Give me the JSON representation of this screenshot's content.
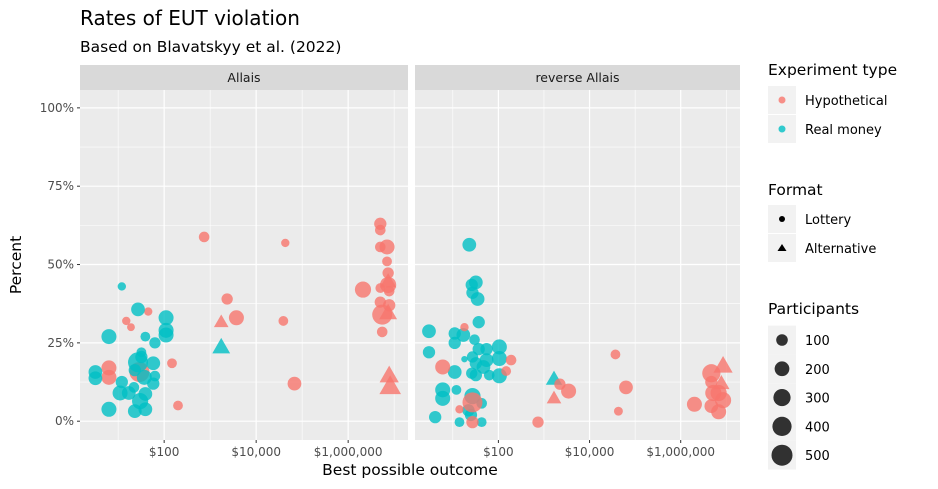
{
  "chart_data": {
    "type": "scatter",
    "title": "Rates of EUT violation",
    "subtitle": "Based on Blavatskyy et al. (2022)",
    "xlabel": "Best possible outcome",
    "ylabel": "Percent",
    "x_scale": "log10",
    "xlim": [
      1.48,
      20000000
    ],
    "ylim": [
      -0.06,
      1.057
    ],
    "x_ticks": [
      {
        "value": 100,
        "label": "$100"
      },
      {
        "value": 10000,
        "label": "$10,000"
      },
      {
        "value": 1000000,
        "label": "$1,000,000"
      }
    ],
    "y_ticks": [
      {
        "value": 0,
        "label": "0%"
      },
      {
        "value": 0.25,
        "label": "25%"
      },
      {
        "value": 0.5,
        "label": "50%"
      },
      {
        "value": 0.75,
        "label": "75%"
      },
      {
        "value": 1,
        "label": "100%"
      }
    ],
    "grid": true,
    "facets": [
      "Allais",
      "reverse Allais"
    ],
    "colors": {
      "Hypothetical": "#F8766D",
      "Real money": "#00BFC4"
    },
    "legend": {
      "placement": "right",
      "color_title": "Experiment type",
      "color_entries": [
        "Hypothetical",
        "Real money"
      ],
      "shape_title": "Format",
      "shape_entries": [
        "Lottery",
        "Alternative"
      ],
      "size_title": "Participants",
      "size_entries": [
        "100",
        "200",
        "300",
        "400",
        "500"
      ]
    },
    "point_fields": [
      "x",
      "y",
      "participants",
      "experiment_type",
      "format"
    ],
    "panels": [
      {
        "facet": "Allais",
        "points": [
          [
            740,
            0.588,
            100,
            "H",
            "L"
          ],
          [
            43000,
            0.569,
            50,
            "H",
            "L"
          ],
          [
            5000000,
            0.63,
            150,
            "H",
            "L"
          ],
          [
            5000000,
            0.61,
            100,
            "H",
            "L"
          ],
          [
            5000000,
            0.556,
            100,
            "H",
            "L"
          ],
          [
            7000000,
            0.556,
            250,
            "H",
            "L"
          ],
          [
            7000000,
            0.51,
            80,
            "H",
            "L"
          ],
          [
            7400000,
            0.473,
            120,
            "H",
            "L"
          ],
          [
            7400000,
            0.435,
            300,
            "H",
            "L"
          ],
          [
            5000000,
            0.425,
            80,
            "H",
            "L"
          ],
          [
            7800000,
            0.415,
            100,
            "H",
            "L"
          ],
          [
            2100000,
            0.42,
            300,
            "H",
            "L"
          ],
          [
            7400000,
            0.445,
            200,
            "H",
            "A"
          ],
          [
            5000000,
            0.38,
            120,
            "H",
            "L"
          ],
          [
            7800000,
            0.37,
            150,
            "H",
            "L"
          ],
          [
            5500000,
            0.34,
            500,
            "H",
            "L"
          ],
          [
            7400000,
            0.345,
            250,
            "H",
            "A"
          ],
          [
            5500000,
            0.285,
            100,
            "H",
            "L"
          ],
          [
            7800000,
            0.145,
            300,
            "H",
            "A"
          ],
          [
            8200000,
            0.11,
            400,
            "H",
            "A"
          ],
          [
            2340,
            0.39,
            120,
            "H",
            "L"
          ],
          [
            3720,
            0.33,
            250,
            "H",
            "L"
          ],
          [
            1740,
            0.316,
            150,
            "H",
            "A"
          ],
          [
            39000,
            0.32,
            80,
            "H",
            "L"
          ],
          [
            68000,
            0.12,
            200,
            "H",
            "L"
          ],
          [
            148,
            0.185,
            80,
            "H",
            "L"
          ],
          [
            200,
            0.05,
            80,
            "H",
            "L"
          ],
          [
            45,
            0.35,
            50,
            "H",
            "L"
          ],
          [
            15,
            0.32,
            50,
            "H",
            "L"
          ],
          [
            19,
            0.3,
            40,
            "H",
            "L"
          ],
          [
            6.3,
            0.17,
            250,
            "H",
            "L"
          ],
          [
            6.3,
            0.14,
            250,
            "H",
            "L"
          ],
          [
            29,
            0.157,
            500,
            "H",
            "L"
          ],
          [
            12,
            0.43,
            50,
            "R",
            "L"
          ],
          [
            27,
            0.357,
            200,
            "R",
            "L"
          ],
          [
            6.3,
            0.27,
            250,
            "R",
            "L"
          ],
          [
            110,
            0.33,
            250,
            "R",
            "L"
          ],
          [
            110,
            0.29,
            250,
            "R",
            "L"
          ],
          [
            110,
            0.275,
            250,
            "R",
            "L"
          ],
          [
            39,
            0.27,
            80,
            "R",
            "L"
          ],
          [
            63,
            0.25,
            120,
            "R",
            "L"
          ],
          [
            1740,
            0.236,
            250,
            "R",
            "A"
          ],
          [
            32,
            0.22,
            80,
            "R",
            "L"
          ],
          [
            32,
            0.205,
            150,
            "R",
            "L"
          ],
          [
            27,
            0.188,
            500,
            "R",
            "L"
          ],
          [
            58,
            0.185,
            200,
            "R",
            "L"
          ],
          [
            3.2,
            0.157,
            200,
            "R",
            "L"
          ],
          [
            3.2,
            0.137,
            200,
            "R",
            "L"
          ],
          [
            23,
            0.163,
            150,
            "R",
            "L"
          ],
          [
            37,
            0.14,
            250,
            "R",
            "L"
          ],
          [
            63,
            0.144,
            100,
            "R",
            "L"
          ],
          [
            58,
            0.12,
            150,
            "R",
            "L"
          ],
          [
            12,
            0.125,
            150,
            "R",
            "L"
          ],
          [
            11,
            0.09,
            250,
            "R",
            "L"
          ],
          [
            17,
            0.09,
            200,
            "R",
            "L"
          ],
          [
            39,
            0.087,
            200,
            "R",
            "L"
          ],
          [
            30,
            0.064,
            300,
            "R",
            "L"
          ],
          [
            6.3,
            0.038,
            250,
            "R",
            "L"
          ],
          [
            23,
            0.032,
            200,
            "R",
            "L"
          ],
          [
            39,
            0.038,
            200,
            "R",
            "L"
          ],
          [
            22,
            0.108,
            100,
            "R",
            "L"
          ]
        ]
      },
      {
        "facet": "reverse Allais",
        "points": [
          [
            23,
            0.563,
            200,
            "R",
            "L"
          ],
          [
            32,
            0.443,
            200,
            "R",
            "L"
          ],
          [
            26,
            0.435,
            150,
            "R",
            "L"
          ],
          [
            27,
            0.41,
            150,
            "R",
            "L"
          ],
          [
            35,
            0.39,
            200,
            "R",
            "L"
          ],
          [
            37,
            0.316,
            150,
            "R",
            "L"
          ],
          [
            3,
            0.287,
            200,
            "R",
            "L"
          ],
          [
            11,
            0.28,
            150,
            "R",
            "L"
          ],
          [
            17,
            0.275,
            200,
            "R",
            "L"
          ],
          [
            11,
            0.25,
            150,
            "R",
            "L"
          ],
          [
            3,
            0.22,
            150,
            "R",
            "L"
          ],
          [
            105,
            0.237,
            250,
            "R",
            "L"
          ],
          [
            105,
            0.2,
            250,
            "R",
            "L"
          ],
          [
            105,
            0.145,
            250,
            "R",
            "L"
          ],
          [
            30,
            0.26,
            100,
            "R",
            "L"
          ],
          [
            37,
            0.23,
            150,
            "R",
            "L"
          ],
          [
            55,
            0.23,
            150,
            "R",
            "L"
          ],
          [
            27,
            0.205,
            120,
            "R",
            "L"
          ],
          [
            55,
            0.195,
            200,
            "R",
            "L"
          ],
          [
            32,
            0.185,
            150,
            "R",
            "L"
          ],
          [
            47,
            0.173,
            200,
            "R",
            "L"
          ],
          [
            26,
            0.153,
            120,
            "R",
            "L"
          ],
          [
            32,
            0.147,
            150,
            "R",
            "L"
          ],
          [
            63,
            0.147,
            100,
            "R",
            "L"
          ],
          [
            11,
            0.157,
            200,
            "R",
            "L"
          ],
          [
            18,
            0.198,
            20,
            "R",
            "L"
          ],
          [
            6,
            0.1,
            250,
            "R",
            "L"
          ],
          [
            6,
            0.073,
            250,
            "R",
            "L"
          ],
          [
            12,
            0.1,
            80,
            "R",
            "L"
          ],
          [
            27,
            0.08,
            300,
            "R",
            "L"
          ],
          [
            43,
            0.057,
            100,
            "R",
            "L"
          ],
          [
            22,
            0.035,
            150,
            "R",
            "L"
          ],
          [
            25,
            0.02,
            150,
            "R",
            "L"
          ],
          [
            4.1,
            0.013,
            150,
            "R",
            "L"
          ],
          [
            14,
            -0.003,
            80,
            "R",
            "L"
          ],
          [
            43,
            -0.003,
            80,
            "R",
            "L"
          ],
          [
            1660,
            0.134,
            200,
            "R",
            "A"
          ],
          [
            18,
            0.3,
            50,
            "H",
            "L"
          ],
          [
            6,
            0.173,
            250,
            "H",
            "L"
          ],
          [
            190,
            0.195,
            100,
            "H",
            "L"
          ],
          [
            148,
            0.16,
            80,
            "H",
            "L"
          ],
          [
            27,
            0.06,
            500,
            "H",
            "L"
          ],
          [
            14,
            0.038,
            50,
            "H",
            "L"
          ],
          [
            27,
            -0.003,
            150,
            "H",
            "L"
          ],
          [
            740,
            -0.003,
            120,
            "H",
            "L"
          ],
          [
            2240,
            0.118,
            120,
            "H",
            "L"
          ],
          [
            3470,
            0.096,
            250,
            "H",
            "L"
          ],
          [
            1660,
            0.073,
            150,
            "H",
            "A"
          ],
          [
            37000,
            0.213,
            80,
            "H",
            "L"
          ],
          [
            63000,
            0.108,
            200,
            "H",
            "L"
          ],
          [
            43000,
            0.032,
            60,
            "H",
            "L"
          ],
          [
            2000000,
            0.054,
            250,
            "H",
            "L"
          ],
          [
            4700000,
            0.153,
            400,
            "H",
            "L"
          ],
          [
            4700000,
            0.125,
            150,
            "H",
            "L"
          ],
          [
            5200000,
            0.09,
            300,
            "H",
            "L"
          ],
          [
            6800000,
            0.09,
            300,
            "H",
            "L"
          ],
          [
            4700000,
            0.048,
            200,
            "H",
            "L"
          ],
          [
            8500000,
            0.067,
            300,
            "H",
            "L"
          ],
          [
            6800000,
            0.03,
            250,
            "H",
            "L"
          ],
          [
            8500000,
            0.176,
            300,
            "H",
            "A"
          ],
          [
            7800000,
            0.12,
            200,
            "H",
            "A"
          ]
        ]
      }
    ]
  }
}
